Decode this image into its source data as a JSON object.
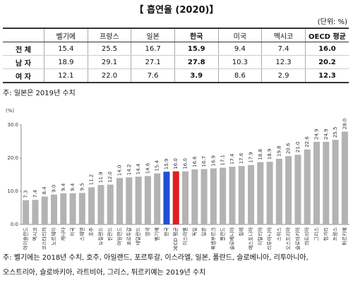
{
  "title": "【 흡연율 (2020)】",
  "unit": "(단위: %)",
  "table": {
    "header": [
      "",
      "벨기에",
      "프랑스",
      "일본",
      "한국",
      "미국",
      "멕시코",
      "OECD 평균"
    ],
    "rows": [
      [
        "전  체",
        "15.4",
        "25.5",
        "16.7",
        "15.9",
        "9.4",
        "7.4",
        "16.0"
      ],
      [
        "남  자",
        "18.9",
        "29.1",
        "27.1",
        "27.8",
        "10.3",
        "12.3",
        "20.2"
      ],
      [
        "여  자",
        "12.1",
        "22.0",
        "7.6",
        "3.9",
        "8.6",
        "2.9",
        "12.3"
      ]
    ]
  },
  "table_note": "주: 일본은 2019년 수치",
  "chart_data": {
    "type": "bar",
    "y_label": "(%)",
    "categories": [
      "아이슬란드",
      "멕시코",
      "코스타리카",
      "노르웨이",
      "캐나다",
      "미국",
      "스웨덴",
      "호주",
      "뉴질랜드",
      "핀란드",
      "아일랜드",
      "포르투갈",
      "네덜란드",
      "영국",
      "벨기에",
      "한국",
      "OECD 평균",
      "이스라엘",
      "독일",
      "일본",
      "룩셈부르크",
      "폴란드",
      "슬로베니아",
      "칠레",
      "에스토니아",
      "이탈리아",
      "리투아니아",
      "스위스",
      "오스트리아",
      "슬로바키아",
      "라트비아",
      "그리스",
      "헝가리",
      "프랑스",
      "튀르키예"
    ],
    "values": [
      7.3,
      7.4,
      8.4,
      9.0,
      9.4,
      9.4,
      9.5,
      11.2,
      11.9,
      12.0,
      14.0,
      14.2,
      14.4,
      14.6,
      15.4,
      15.9,
      16.0,
      16.0,
      16.6,
      16.7,
      16.9,
      17.1,
      17.4,
      17.6,
      17.9,
      18.8,
      18.9,
      19.8,
      20.6,
      21.0,
      22.6,
      24.9,
      24.9,
      25.5,
      28.0
    ],
    "value_labels": [
      "7.3",
      "7.4",
      "8.4",
      "9.0",
      "9.4",
      "9.4",
      "9.5",
      "11.2",
      "11.9",
      "12.0",
      "14.0",
      "14.2",
      "14.4",
      "14.6",
      "15.4",
      "15.9",
      "16.0",
      "16.0",
      "16.6",
      "16.7",
      "16.9",
      "17.1",
      "17.4",
      "17.6",
      "17.9",
      "18.8",
      "18.9",
      "19.8",
      "20.6",
      "21.0",
      "22.6",
      "24.9",
      "24.9",
      "25.5",
      "28.0"
    ],
    "colors": [
      "#b3b3b3",
      "#b3b3b3",
      "#b3b3b3",
      "#b3b3b3",
      "#b3b3b3",
      "#b3b3b3",
      "#b3b3b3",
      "#b3b3b3",
      "#b3b3b3",
      "#b3b3b3",
      "#b3b3b3",
      "#b3b3b3",
      "#b3b3b3",
      "#b3b3b3",
      "#b3b3b3",
      "#1f4fd8",
      "#e02020",
      "#b3b3b3",
      "#b3b3b3",
      "#b3b3b3",
      "#b3b3b3",
      "#b3b3b3",
      "#b3b3b3",
      "#b3b3b3",
      "#b3b3b3",
      "#b3b3b3",
      "#b3b3b3",
      "#b3b3b3",
      "#b3b3b3",
      "#b3b3b3",
      "#b3b3b3",
      "#b3b3b3",
      "#b3b3b3",
      "#b3b3b3",
      "#b3b3b3"
    ],
    "ylim": [
      0,
      30
    ],
    "yticks": [
      {
        "value": 0,
        "label": "0.0"
      },
      {
        "value": 10,
        "label": "10.0"
      },
      {
        "value": 20,
        "label": "20.0"
      },
      {
        "value": 30,
        "label": "30.0"
      }
    ]
  },
  "chart_notes": [
    "주: 벨기에는 2018년 수치, 호주, 아일랜드, 포르투갈, 이스라엘, 일본, 폴란드, 슬로베니아, 리투아니아,",
    "오스트리아, 슬로바키아, 라트비아, 그리스, 튀르키예는 2019년 수치"
  ]
}
